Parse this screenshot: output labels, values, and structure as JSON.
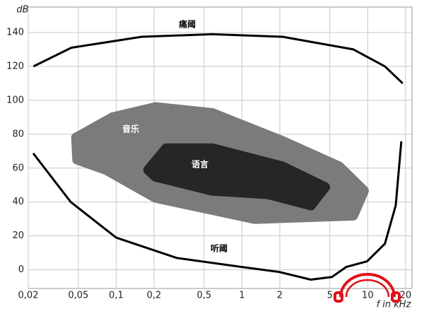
{
  "chart_data": {
    "type": "line",
    "xscale": "log",
    "y_label": "dB",
    "x_label": "f in kHz",
    "xlim": [
      0.02,
      22.5
    ],
    "ylim": [
      -11,
      155
    ],
    "xticks": [
      {
        "value": 0.02,
        "label": "0,02"
      },
      {
        "value": 0.05,
        "label": "0,05"
      },
      {
        "value": 0.1,
        "label": "0,1"
      },
      {
        "value": 0.2,
        "label": "0,2"
      },
      {
        "value": 0.5,
        "label": "0,5"
      },
      1,
      2,
      5,
      10,
      20
    ],
    "yticks": [
      0,
      20,
      40,
      60,
      80,
      100,
      120,
      140
    ],
    "grid": true,
    "series": [
      {
        "name": "音乐",
        "kind": "area",
        "color": "#7b7b7b",
        "x": [
          0.048,
          0.094,
          0.205,
          0.578,
          2.1,
          5.93,
          9.33,
          7.67,
          1.26,
          0.205,
          0.083,
          0.049
        ],
        "values": [
          78,
          90,
          96,
          92.5,
          76,
          61,
          46.7,
          32,
          30,
          42.5,
          59,
          65
        ]
      },
      {
        "name": "语言",
        "kind": "area",
        "color": "#262626",
        "x": [
          0.18,
          0.25,
          0.578,
          2.1,
          4.58,
          3.53,
          1.62,
          0.578,
          0.205
        ],
        "values": [
          59,
          71.7,
          71.7,
          61,
          48.75,
          38,
          44.6,
          46.7,
          55
        ]
      },
      {
        "name": "痛阈",
        "kind": "line",
        "color": "#000000",
        "x": [
          0.022,
          0.044,
          0.16,
          0.58,
          2.1,
          7.7,
          13.7,
          19
        ],
        "values": [
          120,
          131,
          137.5,
          139,
          137.5,
          130,
          120,
          110
        ]
      },
      {
        "name": "听阈",
        "kind": "line",
        "color": "#000000",
        "x": [
          0.0219,
          0.0435,
          0.1,
          0.303,
          1,
          1.97,
          3.53,
          5.2,
          6.75,
          9.9,
          13.7,
          16.7,
          18.5
        ],
        "values": [
          68.75,
          40,
          19,
          7,
          1.7,
          -1.25,
          -5.8,
          -4.2,
          1.7,
          5,
          15.4,
          38,
          75.8
        ]
      }
    ]
  }
}
